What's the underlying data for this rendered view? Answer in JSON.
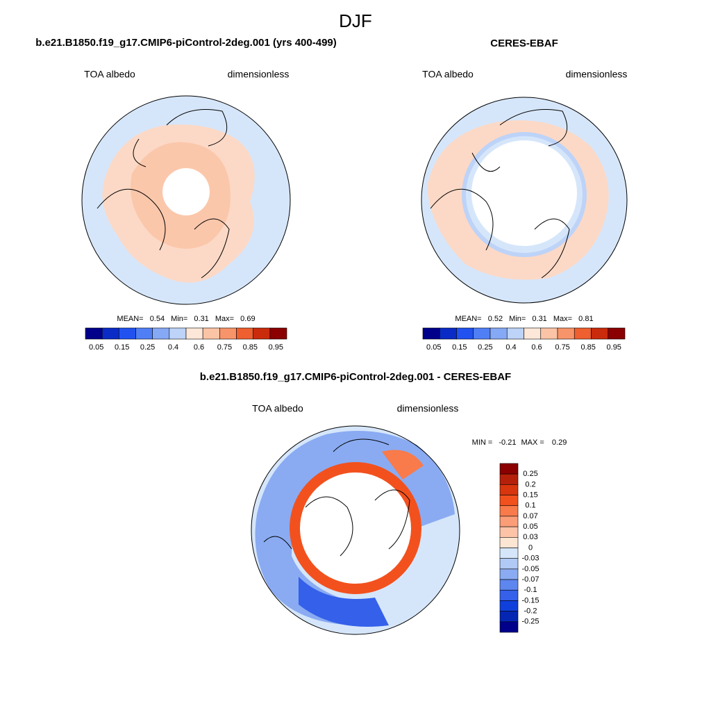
{
  "title": "DJF",
  "panels": [
    {
      "title": "b.e21.B1850.f19_g17.CMIP6-piControl-2deg.001 (yrs 400-499)",
      "variable": "TOA albedo",
      "units": "dimensionless",
      "stats": {
        "mean_label": "MEAN=",
        "mean": 0.54,
        "min_label": "Min=",
        "min": 0.31,
        "max_label": "Max=",
        "max": 0.69
      },
      "colorbar": {
        "labels": [
          0.05,
          0.15,
          0.25,
          0.4,
          0.6,
          0.75,
          0.85,
          0.95
        ],
        "colors": [
          "#00008b",
          "#0a2bc5",
          "#2152f0",
          "#507ff5",
          "#86a9f5",
          "#bdd3f8",
          "#fde7d8",
          "#fcc4a6",
          "#f8946a",
          "#ef5f2f",
          "#c92b0c",
          "#8b0000"
        ]
      }
    },
    {
      "title": "CERES-EBAF",
      "variable": "TOA albedo",
      "units": "dimensionless",
      "stats": {
        "mean_label": "MEAN=",
        "mean": 0.52,
        "min_label": "Min=",
        "min": 0.31,
        "max_label": "Max=",
        "max": 0.81
      },
      "colorbar": {
        "labels": [
          0.05,
          0.15,
          0.25,
          0.4,
          0.6,
          0.75,
          0.85,
          0.95
        ],
        "colors": [
          "#00008b",
          "#0a2bc5",
          "#2152f0",
          "#507ff5",
          "#86a9f5",
          "#bdd3f8",
          "#fde7d8",
          "#fcc4a6",
          "#f8946a",
          "#ef5f2f",
          "#c92b0c",
          "#8b0000"
        ]
      }
    },
    {
      "title": "b.e21.B1850.f19_g17.CMIP6-piControl-2deg.001 - CERES-EBAF",
      "variable": "TOA albedo",
      "units": "dimensionless",
      "stats": {
        "min_label": "MIN =",
        "min": -0.21,
        "max_label": "MAX =",
        "max": 0.29
      },
      "colorbar": {
        "labels": [
          0.25,
          0.2,
          0.15,
          0.1,
          0.07,
          0.05,
          0.03,
          0,
          -0.03,
          -0.05,
          -0.07,
          -0.1,
          -0.15,
          -0.2,
          -0.25
        ],
        "colors": [
          "#8b0000",
          "#b5200a",
          "#d8360e",
          "#f2511e",
          "#f97a4a",
          "#fb9e78",
          "#fcc3a6",
          "#fde5d4",
          "#d6e6fa",
          "#b0c9f5",
          "#8aabf2",
          "#5e86ef",
          "#3460ea",
          "#1040dc",
          "#0426b3",
          "#00008b"
        ]
      }
    }
  ]
}
